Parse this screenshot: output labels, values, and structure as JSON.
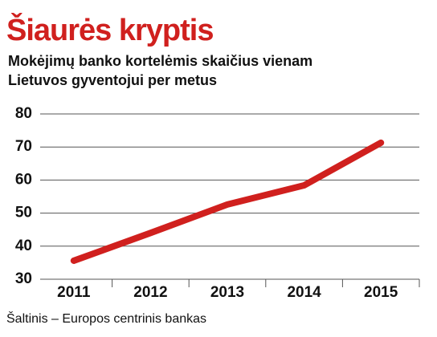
{
  "chart_data": {
    "type": "line",
    "title": "Šiaurės kryptis",
    "subtitle": [
      "Mokėjimų banko kortelėmis skaičius vienam",
      "Lietuvos gyventojui per metus"
    ],
    "categories": [
      "2011",
      "2012",
      "2013",
      "2014",
      "2015"
    ],
    "values": [
      35.6,
      44,
      52.6,
      58.4,
      71.3
    ],
    "color": "#d0201e",
    "ylim": [
      30,
      80
    ],
    "yticks": [
      30,
      40,
      50,
      60,
      70,
      80
    ],
    "grid": true,
    "source": "Šaltinis – Europos centrinis bankas"
  }
}
